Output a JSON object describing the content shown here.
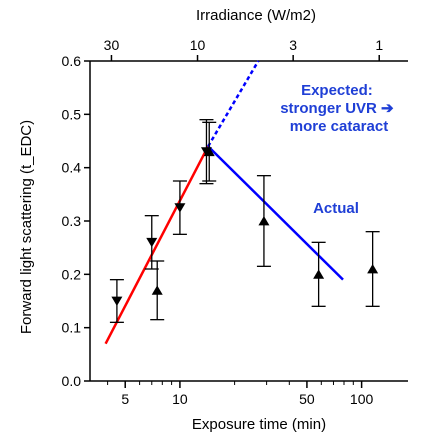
{
  "chart_data": {
    "type": "scatter",
    "x_scale": "log",
    "xlabel": "Exposure time (min)",
    "ylabel": "Forward light scattering (t_EDC)",
    "top_axis_label": "Irradiance (W/m2)",
    "xlim": [
      3.2,
      180
    ],
    "ylim": [
      0.0,
      0.6
    ],
    "x_ticks": [
      5,
      10,
      50,
      100
    ],
    "y_ticks": [
      0.0,
      0.1,
      0.2,
      0.3,
      0.4,
      0.5,
      0.6
    ],
    "top_ticks": [
      {
        "label": "30",
        "x": 4.2
      },
      {
        "label": "10",
        "x": 12.5
      },
      {
        "label": "3",
        "x": 42
      },
      {
        "label": "1",
        "x": 125
      }
    ],
    "series": [
      {
        "marker": "triangle-down",
        "points": [
          {
            "x": 4.5,
            "y": 0.15,
            "err": 0.04
          },
          {
            "x": 7.0,
            "y": 0.26,
            "err": 0.05
          },
          {
            "x": 10.0,
            "y": 0.325,
            "err": 0.05
          },
          {
            "x": 14.0,
            "y": 0.43,
            "err": 0.06
          }
        ]
      },
      {
        "marker": "triangle-up",
        "points": [
          {
            "x": 7.5,
            "y": 0.17,
            "err": 0.055
          },
          {
            "x": 14.5,
            "y": 0.43,
            "err": 0.055
          },
          {
            "x": 29.0,
            "y": 0.3,
            "err": 0.085
          },
          {
            "x": 58.0,
            "y": 0.2,
            "err": 0.06
          },
          {
            "x": 115.0,
            "y": 0.21,
            "err": 0.07
          }
        ]
      }
    ],
    "fit_lines": [
      {
        "color": "#ff0000",
        "style": "solid",
        "from": [
          3.9,
          0.07
        ],
        "to": [
          14.3,
          0.44
        ]
      },
      {
        "color": "#0000ff",
        "style": "solid",
        "from": [
          14.3,
          0.44
        ],
        "to": [
          79.0,
          0.19
        ]
      },
      {
        "color": "#0000ff",
        "style": "dotted",
        "from": [
          14.3,
          0.44
        ],
        "to": [
          27.0,
          0.6
        ]
      }
    ],
    "annotations": [
      {
        "lines": [
          "Expected:",
          "stronger UVR ➔",
          "more cataract"
        ],
        "color": "#1f3fd6"
      },
      {
        "lines": [
          "Actual"
        ],
        "color": "#1f3fd6"
      }
    ]
  }
}
